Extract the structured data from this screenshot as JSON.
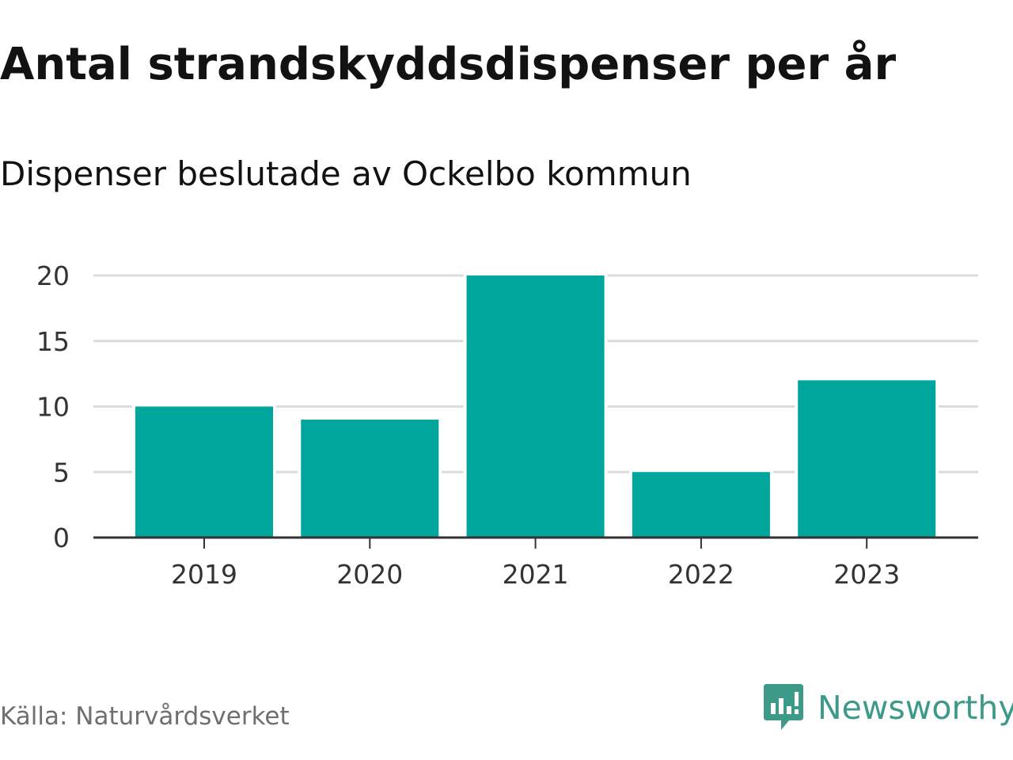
{
  "chart_data": {
    "type": "bar",
    "title": "Antal strandskyddsdispenser per år",
    "subtitle": "Dispenser beslutade av Ockelbo kommun",
    "categories": [
      "2019",
      "2020",
      "2021",
      "2022",
      "2023"
    ],
    "values": [
      10,
      9,
      20,
      5,
      12
    ],
    "ylim": [
      0,
      20
    ],
    "yticks": [
      "0",
      "5",
      "10",
      "15",
      "20"
    ],
    "xlabel": "",
    "ylabel": "",
    "grid": true,
    "bar_color": "#00a69c"
  },
  "footer": {
    "source": "Källa: Naturvårdsverket",
    "brand": "Newsworthy",
    "brand_color": "#3d9a88",
    "logo_icon": "newsworthy-logo-icon"
  }
}
